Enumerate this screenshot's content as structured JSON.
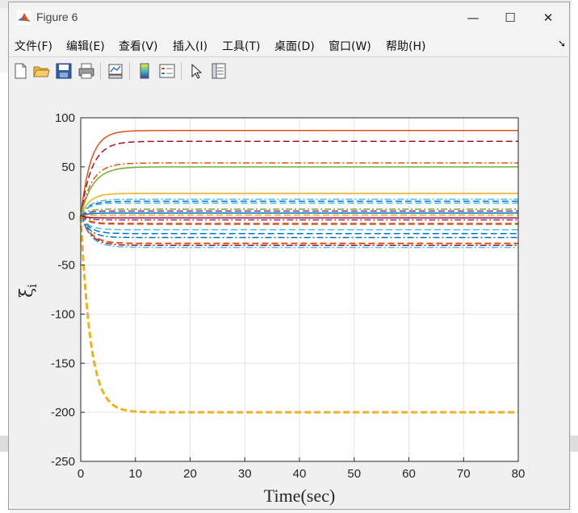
{
  "window": {
    "title": "Figure 6",
    "controls": [
      "—",
      "☐",
      "✕"
    ]
  },
  "menu": [
    {
      "label": "文件(F)"
    },
    {
      "label": "编辑(E)"
    },
    {
      "label": "查看(V)"
    },
    {
      "label": "插入(I)"
    },
    {
      "label": "工具(T)"
    },
    {
      "label": "桌面(D)"
    },
    {
      "label": "窗口(W)"
    },
    {
      "label": "帮助(H)"
    }
  ],
  "toolbar": [
    {
      "icon": "new-figure-icon"
    },
    {
      "icon": "open-folder-icon"
    },
    {
      "icon": "save-icon"
    },
    {
      "icon": "print-icon"
    },
    {
      "icon": "link-plot-icon"
    },
    {
      "icon": "insert-colorbar-icon"
    },
    {
      "icon": "insert-legend-icon"
    },
    {
      "icon": "edit-plot-icon"
    },
    {
      "icon": "property-inspector-icon"
    }
  ],
  "chart_data": {
    "type": "line",
    "title": "",
    "xlabel": "Time(sec)",
    "ylabel": "ξ",
    "ylabel_subscript": "i",
    "xlim": [
      0,
      80
    ],
    "ylim": [
      -250,
      100
    ],
    "xticks": [
      0,
      10,
      20,
      30,
      40,
      50,
      60,
      70,
      80
    ],
    "yticks": [
      -250,
      -200,
      -150,
      -100,
      -50,
      0,
      50,
      100
    ],
    "grid": true,
    "series": [
      {
        "final": 87,
        "tau": 1.8,
        "color": "#D95319",
        "style": "solid",
        "width": 1.5
      },
      {
        "final": 76,
        "tau": 2.0,
        "color": "#A2142F",
        "style": "dash",
        "width": 1.5
      },
      {
        "final": 54,
        "tau": 2.0,
        "color": "#D95319",
        "style": "dashdot",
        "width": 1.5
      },
      {
        "final": 50,
        "tau": 2.2,
        "color": "#77AC30",
        "style": "solid",
        "width": 1.5
      },
      {
        "final": 23,
        "tau": 1.6,
        "color": "#EDB120",
        "style": "solid",
        "width": 1.5
      },
      {
        "final": 17,
        "tau": 1.6,
        "color": "#4DBEEE",
        "style": "dashdot",
        "width": 1.5
      },
      {
        "final": 15,
        "tau": 1.6,
        "color": "#0072BD",
        "style": "dash",
        "width": 1.5
      },
      {
        "final": 13,
        "tau": 1.4,
        "color": "#4DBEEE",
        "style": "dash",
        "width": 1.5
      },
      {
        "final": 7,
        "tau": 1.2,
        "color": "#77AC30",
        "style": "dashdot",
        "width": 1.5
      },
      {
        "final": 5,
        "tau": 1.2,
        "color": "#7E2F8E",
        "style": "dash",
        "width": 1.5
      },
      {
        "final": 3,
        "tau": 1.2,
        "color": "#0072BD",
        "style": "solid",
        "width": 1.5
      },
      {
        "final": 1,
        "tau": 1.2,
        "color": "#EDB120",
        "style": "dash",
        "width": 1.5
      },
      {
        "final": -2,
        "tau": 1.2,
        "color": "#A2142F",
        "style": "solid",
        "width": 1.5
      },
      {
        "final": -4,
        "tau": 1.2,
        "color": "#7E2F8E",
        "style": "dashdot",
        "width": 1.5
      },
      {
        "final": -8,
        "tau": 1.4,
        "color": "#D95319",
        "style": "dash",
        "width": 2.5
      },
      {
        "final": -14,
        "tau": 1.4,
        "color": "#4DBEEE",
        "style": "dash",
        "width": 1.5
      },
      {
        "final": -18,
        "tau": 1.6,
        "color": "#0072BD",
        "style": "dash",
        "width": 1.5
      },
      {
        "final": -22,
        "tau": 1.6,
        "color": "#0072BD",
        "style": "dashdot",
        "width": 1.5
      },
      {
        "final": -28,
        "tau": 1.8,
        "color": "#D95319",
        "style": "dash",
        "width": 2.0
      },
      {
        "final": -30,
        "tau": 1.8,
        "color": "#A2142F",
        "style": "dashdot",
        "width": 1.5
      },
      {
        "final": -32,
        "tau": 1.8,
        "color": "#4DBEEE",
        "style": "dashdot",
        "width": 1.5
      },
      {
        "final": -200,
        "tau": 1.8,
        "color": "#EDB120",
        "style": "dash",
        "width": 3.0
      }
    ]
  }
}
